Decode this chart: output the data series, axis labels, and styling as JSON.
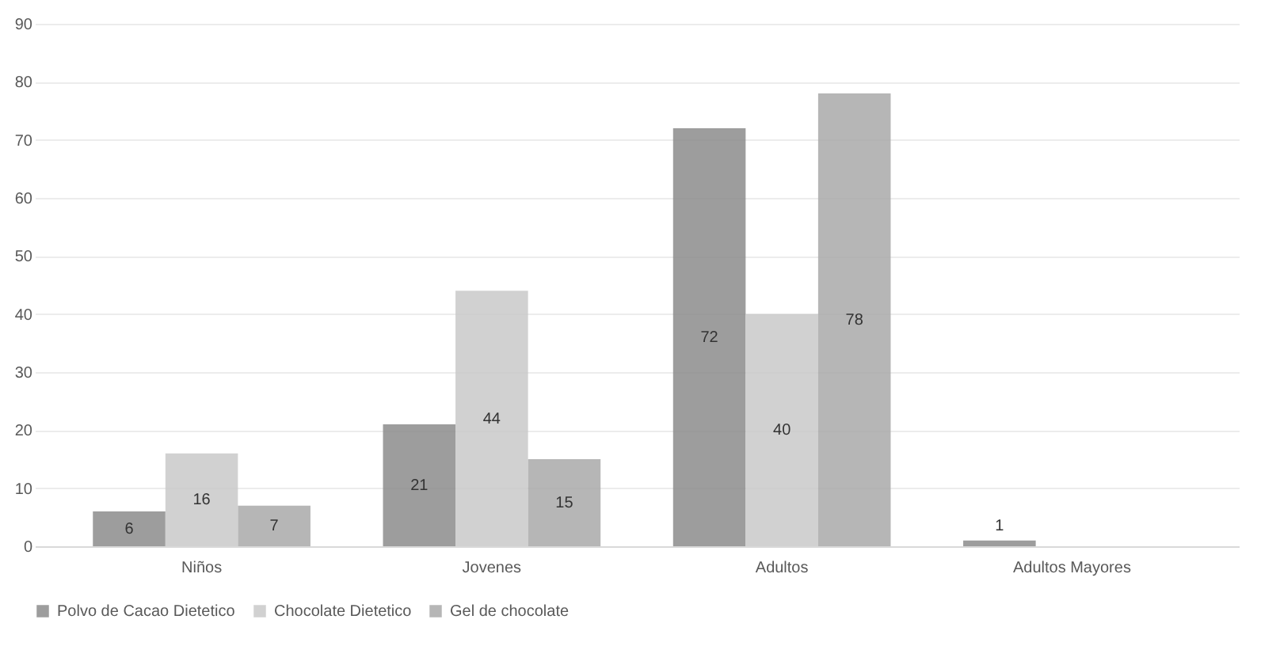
{
  "chart_data": {
    "type": "bar",
    "categories": [
      "Niños",
      "Jovenes",
      "Adultos",
      "Adultos Mayores"
    ],
    "series": [
      {
        "name": "Polvo de Cacao Dietetico",
        "color": "#8c8c8c",
        "values": [
          6,
          21,
          72,
          1
        ]
      },
      {
        "name": "Chocolate Dietetico",
        "color": "#c9c9c9",
        "values": [
          16,
          44,
          40,
          null
        ]
      },
      {
        "name": "Gel de chocolate",
        "color": "#a9a9a9",
        "values": [
          7,
          15,
          78,
          null
        ]
      }
    ],
    "ylim": [
      0,
      90
    ],
    "yticks": [
      0,
      10,
      20,
      30,
      40,
      50,
      60,
      70,
      80,
      90
    ],
    "grid": "y",
    "legend": "bottom",
    "data_labels": true
  }
}
